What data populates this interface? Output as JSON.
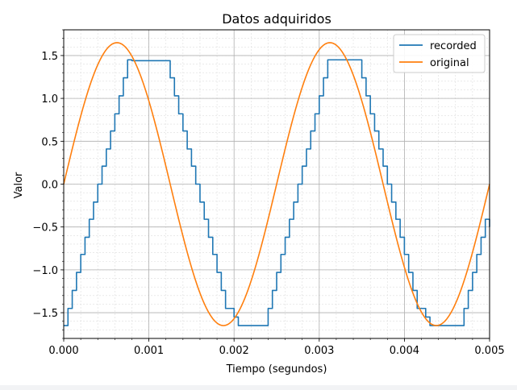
{
  "chart_data": {
    "type": "line",
    "title": "Datos adquiridos",
    "xlabel": "Tiempo (segundos)",
    "ylabel": "Valor",
    "xlim": [
      0,
      0.005
    ],
    "ylim": [
      -1.8,
      1.8
    ],
    "x_ticks": [
      0,
      0.001,
      0.002,
      0.003,
      0.004,
      0.005
    ],
    "x_tick_labels": [
      "0.000",
      "0.001",
      "0.002",
      "0.003",
      "0.004",
      "0.005"
    ],
    "y_ticks": [
      -1.5,
      -1.0,
      -0.5,
      0.0,
      0.5,
      1.0,
      1.5
    ],
    "y_tick_labels": [
      "−1.5",
      "−1.0",
      "−0.5",
      "0.0",
      "0.5",
      "1.0",
      "1.5"
    ],
    "grid": true,
    "minor_grid": true,
    "legend_position": "top-right",
    "series": [
      {
        "name": "recorded",
        "color": "#1f77b4",
        "style": "steps-post",
        "x": [
          0.0,
          5e-05,
          0.0001,
          0.00015,
          0.0002,
          0.00025,
          0.0003,
          0.00035,
          0.0004,
          0.00045,
          0.0005,
          0.00055,
          0.0006,
          0.00065,
          0.0007,
          0.00075,
          0.0008,
          0.00085,
          0.0009,
          0.00125,
          0.0013,
          0.00135,
          0.0014,
          0.00145,
          0.0015,
          0.00155,
          0.0016,
          0.00165,
          0.0017,
          0.00175,
          0.0018,
          0.00185,
          0.0019,
          0.00195,
          0.002,
          0.00205,
          0.0024,
          0.00245,
          0.0025,
          0.00255,
          0.0026,
          0.00265,
          0.0027,
          0.00275,
          0.0028,
          0.00285,
          0.0029,
          0.00295,
          0.003,
          0.00305,
          0.0031,
          0.00315,
          0.0032,
          0.00325,
          0.0033,
          0.0035,
          0.00355,
          0.0036,
          0.00365,
          0.0037,
          0.00375,
          0.0038,
          0.00385,
          0.0039,
          0.00395,
          0.004,
          0.00405,
          0.0041,
          0.00415,
          0.0042,
          0.00425,
          0.0043,
          0.00435,
          0.0044,
          0.0047,
          0.00475,
          0.0048,
          0.00485,
          0.0049,
          0.00495,
          0.005
        ],
        "y": [
          -1.65,
          -1.45,
          -1.24,
          -1.03,
          -0.82,
          -0.62,
          -0.41,
          -0.21,
          0.0,
          0.21,
          0.41,
          0.62,
          0.82,
          1.03,
          1.24,
          1.45,
          1.44,
          1.44,
          1.44,
          1.24,
          1.03,
          0.82,
          0.62,
          0.41,
          0.21,
          0.0,
          -0.21,
          -0.41,
          -0.62,
          -0.82,
          -1.03,
          -1.24,
          -1.45,
          -1.45,
          -1.55,
          -1.65,
          -1.45,
          -1.24,
          -1.03,
          -0.82,
          -0.62,
          -0.41,
          -0.21,
          0.0,
          0.21,
          0.41,
          0.62,
          0.82,
          1.03,
          1.24,
          1.45,
          1.45,
          1.45,
          1.45,
          1.45,
          1.24,
          1.03,
          0.82,
          0.62,
          0.41,
          0.21,
          0.0,
          -0.21,
          -0.41,
          -0.62,
          -0.82,
          -1.03,
          -1.24,
          -1.45,
          -1.45,
          -1.55,
          -1.65,
          -1.65,
          -1.65,
          -1.45,
          -1.24,
          -1.03,
          -0.82,
          -0.62,
          -0.41,
          -0.5
        ]
      },
      {
        "name": "original",
        "color": "#ff7f0e",
        "style": "function",
        "function": "1.65 * sin(2 * pi * 400 * t)",
        "amplitude": 1.65,
        "frequency_hz": 400
      }
    ]
  }
}
